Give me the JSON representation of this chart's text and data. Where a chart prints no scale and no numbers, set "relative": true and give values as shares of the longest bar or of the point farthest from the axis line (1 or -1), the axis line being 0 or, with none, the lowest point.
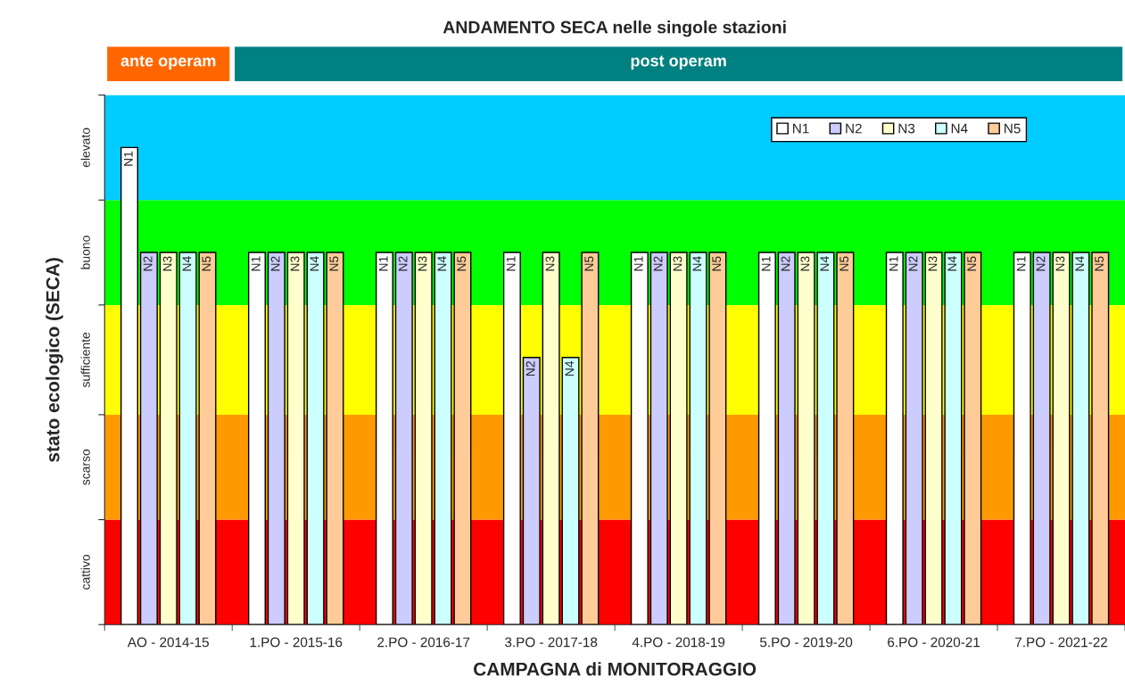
{
  "chart_data": {
    "type": "bar",
    "title": "ANDAMENTO SECA nelle singole stazioni",
    "xlabel": "CAMPAGNA di MONITORAGGIO",
    "ylabel": "stato ecologico (SECA)",
    "categories": [
      "AO - 2014-15",
      "1.PO - 2015-16",
      "2.PO - 2016-17",
      "3.PO - 2017-18",
      "4.PO - 2018-19",
      "5.PO - 2019-20",
      "6.PO - 2020-21",
      "7.PO - 2021-22"
    ],
    "relative": true,
    "series": [
      {
        "name": "N1",
        "color": "#ffffff",
        "values": [
          1,
          0.78,
          0.78,
          0.78,
          0.78,
          0.78,
          0.78,
          0.78
        ]
      },
      {
        "name": "N2",
        "color": "#ccccff",
        "values": [
          0.78,
          0.78,
          0.78,
          0.56,
          0.78,
          0.78,
          0.78,
          0.78
        ]
      },
      {
        "name": "N3",
        "color": "#ffffcc",
        "values": [
          0.78,
          0.78,
          0.78,
          0.78,
          0.78,
          0.78,
          0.78,
          0.78
        ]
      },
      {
        "name": "N4",
        "color": "#ccffff",
        "values": [
          0.78,
          0.78,
          0.78,
          0.56,
          0.78,
          0.78,
          0.78,
          0.78
        ]
      },
      {
        "name": "N5",
        "color": "#ffcc99",
        "values": [
          0.78,
          0.78,
          0.78,
          0.78,
          0.78,
          0.78,
          0.78,
          0.78
        ]
      }
    ],
    "bands": [
      {
        "axis": "y",
        "from": 0,
        "to": 0.22,
        "label": "cattivo",
        "color": "#ff0000"
      },
      {
        "axis": "y",
        "from": 0.22,
        "to": 0.44,
        "label": "scarso",
        "color": "#ff9900"
      },
      {
        "axis": "y",
        "from": 0.44,
        "to": 0.67,
        "label": "sufficiente",
        "color": "#ffff00"
      },
      {
        "axis": "y",
        "from": 0.67,
        "to": 0.89,
        "label": "buono",
        "color": "#00ff00"
      },
      {
        "axis": "y",
        "from": 0.89,
        "to": 1.11,
        "label": "elevato",
        "color": "#00ccff"
      }
    ],
    "annotations": [
      "ante operam",
      "post operam"
    ],
    "grid": false,
    "legend": "top right"
  }
}
